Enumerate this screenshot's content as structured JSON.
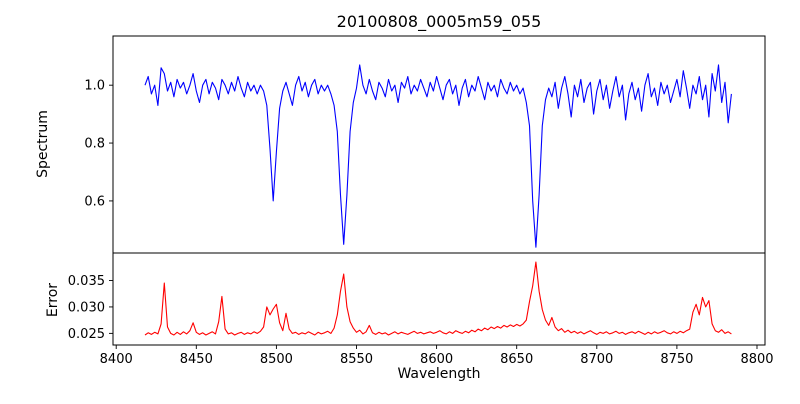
{
  "figure": {
    "background": "#ffffff",
    "axis_color": "#000000"
  },
  "chart_data": [
    {
      "type": "line",
      "panel": "spectrum",
      "title": "20100808_0005m59_055",
      "ylabel": "Spectrum",
      "line_color": "#0000ff",
      "xlim": [
        8398,
        8805
      ],
      "ylim": [
        0.42,
        1.17
      ],
      "yticks": [
        0.6,
        0.8,
        1.0
      ],
      "ytick_labels": [
        "0.6",
        "0.8",
        "1.0"
      ],
      "x_start": 8418,
      "x_step": 2,
      "values": [
        1.0,
        1.03,
        0.97,
        1.0,
        0.93,
        1.06,
        1.04,
        0.98,
        1.01,
        0.96,
        1.02,
        0.99,
        1.01,
        0.97,
        1.0,
        1.04,
        0.98,
        0.94,
        1.0,
        1.02,
        0.97,
        1.01,
        0.99,
        0.95,
        1.02,
        1.0,
        0.97,
        1.01,
        0.98,
        1.03,
        0.99,
        0.96,
        1.01,
        0.98,
        1.0,
        0.97,
        1.0,
        0.98,
        0.93,
        0.78,
        0.6,
        0.77,
        0.92,
        0.98,
        1.01,
        0.97,
        0.93,
        1.0,
        1.03,
        0.98,
        1.01,
        0.96,
        1.0,
        1.02,
        0.97,
        1.0,
        0.98,
        1.0,
        0.97,
        0.93,
        0.84,
        0.62,
        0.45,
        0.62,
        0.84,
        0.94,
        0.99,
        1.07,
        1.0,
        0.97,
        1.02,
        0.98,
        0.95,
        1.01,
        0.99,
        0.96,
        1.02,
        0.98,
        1.0,
        0.94,
        1.01,
        0.99,
        1.03,
        0.97,
        1.0,
        0.98,
        1.02,
        0.99,
        0.96,
        1.01,
        0.98,
        1.03,
        0.99,
        0.95,
        1.0,
        1.02,
        0.97,
        1.0,
        0.93,
        0.99,
        1.02,
        0.96,
        1.0,
        0.98,
        1.03,
        0.99,
        0.95,
        1.01,
        0.98,
        1.0,
        0.96,
        1.02,
        0.99,
        0.97,
        1.01,
        0.98,
        1.0,
        0.97,
        0.99,
        0.94,
        0.86,
        0.6,
        0.44,
        0.62,
        0.86,
        0.95,
        0.99,
        0.96,
        1.01,
        0.92,
        0.99,
        1.03,
        0.97,
        0.89,
        1.0,
        0.96,
        1.02,
        0.94,
        0.99,
        1.01,
        0.9,
        0.98,
        1.02,
        0.95,
        1.0,
        0.92,
        0.98,
        1.03,
        0.96,
        1.0,
        0.88,
        0.97,
        1.01,
        0.95,
        0.99,
        0.91,
        1.0,
        1.04,
        0.96,
        0.99,
        0.93,
        1.01,
        0.97,
        1.0,
        0.94,
        0.98,
        1.02,
        0.96,
        1.05,
        0.99,
        0.92,
        1.0,
        0.97,
        1.03,
        0.95,
        1.0,
        0.89,
        1.04,
        0.98,
        1.07,
        0.94,
        1.01,
        0.87,
        0.97
      ],
      "annotations": [
        "absorption line near 8498",
        "absorption line near 8542",
        "absorption line near 8662"
      ]
    },
    {
      "type": "line",
      "panel": "error",
      "ylabel": "Error",
      "xlabel": "Wavelength",
      "line_color": "#ff0000",
      "xlim": [
        8398,
        8805
      ],
      "ylim": [
        0.0228,
        0.0402
      ],
      "yticks": [
        0.025,
        0.03,
        0.035
      ],
      "ytick_labels": [
        "0.025",
        "0.030",
        "0.035"
      ],
      "xticks": [
        8400,
        8450,
        8500,
        8550,
        8600,
        8650,
        8700,
        8750,
        8800
      ],
      "xtick_labels": [
        "8400",
        "8450",
        "8500",
        "8550",
        "8600",
        "8650",
        "8700",
        "8750",
        "8800"
      ],
      "x_start": 8418,
      "x_step": 2,
      "values": [
        0.0247,
        0.0251,
        0.0248,
        0.0252,
        0.0249,
        0.0268,
        0.0345,
        0.0262,
        0.025,
        0.0247,
        0.0252,
        0.0248,
        0.0253,
        0.0249,
        0.0255,
        0.027,
        0.0252,
        0.0248,
        0.0251,
        0.0247,
        0.025,
        0.0253,
        0.0249,
        0.0272,
        0.032,
        0.0258,
        0.0249,
        0.0251,
        0.0247,
        0.025,
        0.0252,
        0.0248,
        0.0251,
        0.0249,
        0.0253,
        0.025,
        0.0254,
        0.0262,
        0.03,
        0.0285,
        0.0296,
        0.0305,
        0.027,
        0.0255,
        0.0288,
        0.0258,
        0.025,
        0.0252,
        0.0248,
        0.0251,
        0.0249,
        0.0253,
        0.025,
        0.0247,
        0.0252,
        0.0249,
        0.0251,
        0.0254,
        0.025,
        0.026,
        0.0285,
        0.033,
        0.0362,
        0.03,
        0.0272,
        0.026,
        0.0252,
        0.0256,
        0.0249,
        0.0253,
        0.0265,
        0.0251,
        0.0248,
        0.0252,
        0.0249,
        0.0251,
        0.0247,
        0.025,
        0.0253,
        0.0249,
        0.0252,
        0.025,
        0.0248,
        0.0251,
        0.0254,
        0.025,
        0.0252,
        0.0249,
        0.0251,
        0.0253,
        0.025,
        0.0252,
        0.0255,
        0.0251,
        0.0249,
        0.0253,
        0.025,
        0.0255,
        0.0252,
        0.025,
        0.0254,
        0.0251,
        0.0256,
        0.0253,
        0.0258,
        0.0255,
        0.026,
        0.0257,
        0.0262,
        0.0259,
        0.0263,
        0.026,
        0.0265,
        0.0262,
        0.0266,
        0.0263,
        0.0267,
        0.0264,
        0.0268,
        0.0275,
        0.031,
        0.034,
        0.0385,
        0.033,
        0.0295,
        0.0275,
        0.0265,
        0.028,
        0.0262,
        0.0255,
        0.0259,
        0.0252,
        0.0256,
        0.0251,
        0.0254,
        0.025,
        0.0253,
        0.0249,
        0.0252,
        0.0255,
        0.0251,
        0.0248,
        0.0252,
        0.025,
        0.0253,
        0.0249,
        0.0251,
        0.0254,
        0.025,
        0.0252,
        0.0248,
        0.0251,
        0.0253,
        0.025,
        0.0254,
        0.0251,
        0.0248,
        0.0252,
        0.0249,
        0.0253,
        0.025,
        0.0252,
        0.0255,
        0.0251,
        0.0249,
        0.0253,
        0.025,
        0.0254,
        0.0251,
        0.0255,
        0.0258,
        0.029,
        0.0305,
        0.0285,
        0.0318,
        0.03,
        0.0312,
        0.0268,
        0.0255,
        0.0252,
        0.0257,
        0.025,
        0.0253,
        0.0249
      ]
    }
  ]
}
